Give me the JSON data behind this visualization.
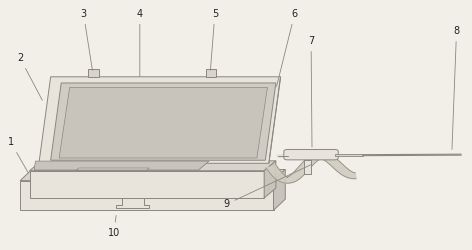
{
  "bg_color": "#f2efe8",
  "line_color": "#888880",
  "fill_light": "#e8e4dc",
  "fill_mid": "#d8d4cc",
  "fill_dark": "#c8c4bc",
  "fill_screen": "#d0ccc4",
  "figsize": [
    4.72,
    2.5
  ],
  "dpi": 100,
  "label_fs": 7,
  "label_color": "#222222"
}
